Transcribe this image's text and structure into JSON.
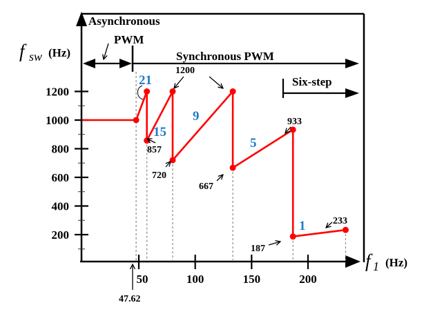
{
  "chart_data": {
    "type": "line",
    "title": "",
    "xlabel": "f1 (Hz)",
    "ylabel": "fsw (Hz)",
    "xlabel_symbol": "f",
    "xlabel_sub": "1",
    "xlabel_unit": "(Hz)",
    "ylabel_symbol": "f",
    "ylabel_sub": "sw",
    "ylabel_unit": "(Hz)",
    "xlim": [
      0,
      240
    ],
    "ylim": [
      0,
      1450
    ],
    "x_ticks": [
      50,
      100,
      150,
      200
    ],
    "x_tick_labels": [
      "50",
      "100",
      "150",
      "200"
    ],
    "y_ticks": [
      200,
      400,
      600,
      800,
      1000,
      1200
    ],
    "y_tick_labels": [
      "200",
      "400",
      "600",
      "800",
      "1000",
      "1200"
    ],
    "y_minor_ticks": [
      100,
      300,
      500,
      700,
      900,
      1100
    ],
    "grid": false,
    "line_color": "#ff0000",
    "ratio_color": "#1f7bc8",
    "series": [
      {
        "name": "fsw",
        "x": [
          0,
          47.62,
          57.14,
          57.14,
          80,
          80,
          133.33,
          133.33,
          186.67,
          186.67,
          233.33
        ],
        "y": [
          1000,
          1000,
          1200,
          857,
          1200,
          720,
          1200,
          667,
          933,
          187,
          233
        ]
      }
    ],
    "markers": [
      {
        "x": 47.62,
        "y": 1000
      },
      {
        "x": 57.14,
        "y": 1200
      },
      {
        "x": 57.14,
        "y": 857
      },
      {
        "x": 80,
        "y": 1200
      },
      {
        "x": 80,
        "y": 720
      },
      {
        "x": 133.33,
        "y": 1200
      },
      {
        "x": 133.33,
        "y": 667
      },
      {
        "x": 186.67,
        "y": 933
      },
      {
        "x": 186.67,
        "y": 187
      },
      {
        "x": 233.33,
        "y": 233
      }
    ],
    "dashed_guides_x": [
      47.62,
      57.14,
      80,
      133.33,
      186.67,
      233.33
    ],
    "annotations": {
      "v857": "857",
      "v720": "720",
      "v667": "667",
      "v933": "933",
      "v187": "187",
      "v233": "233",
      "v1200": "1200",
      "x47": "47.62"
    },
    "pulse_ratios": [
      "21",
      "15",
      "9",
      "5",
      "1"
    ],
    "regions": {
      "async_line1": "Asynchronous",
      "async_line2": "PWM",
      "sync": "Synchronous PWM",
      "sixstep": "Six-step"
    }
  }
}
